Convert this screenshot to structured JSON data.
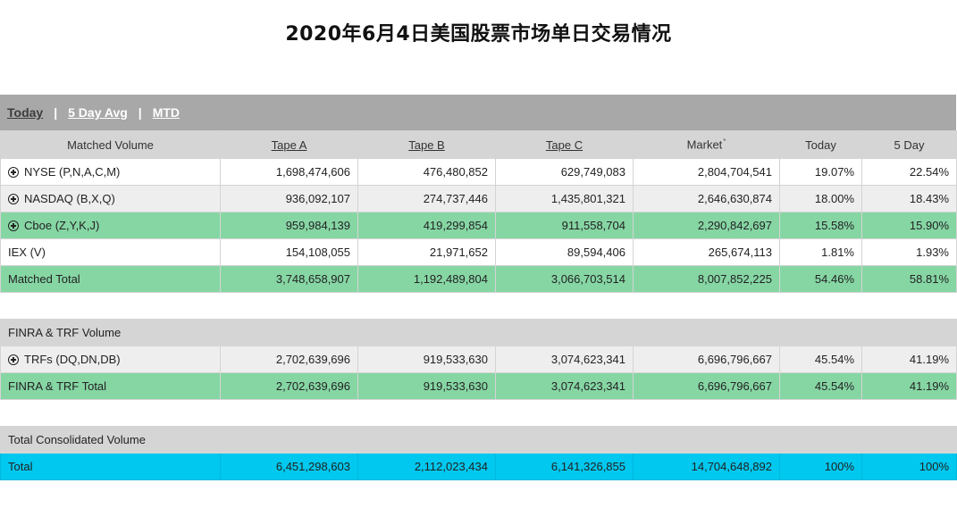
{
  "title": "2020年6月4日美国股票市场单日交易情况",
  "tabs": [
    {
      "label": "Today",
      "active": true
    },
    {
      "label": "5 Day Avg",
      "active": false
    },
    {
      "label": "MTD",
      "active": false
    }
  ],
  "tab_separator": "|",
  "headers": [
    "Matched Volume",
    "Tape A",
    "Tape B",
    "Tape C",
    "Market",
    "Today",
    "5 Day"
  ],
  "market_superscript": "*",
  "matched": [
    {
      "label": "NYSE (P,N,A,C,M)",
      "values": [
        "1,698,474,606",
        "476,480,852",
        "629,749,083",
        "2,804,704,541",
        "19.07%",
        "22.54%"
      ]
    },
    {
      "label": "NASDAQ (B,X,Q)",
      "values": [
        "936,092,107",
        "274,737,446",
        "1,435,801,321",
        "2,646,630,874",
        "18.00%",
        "18.43%"
      ]
    },
    {
      "label": "Cboe (Z,Y,K,J)",
      "values": [
        "959,984,139",
        "419,299,854",
        "911,558,704",
        "2,290,842,697",
        "15.58%",
        "15.90%"
      ]
    },
    {
      "label": "IEX (V)",
      "values": [
        "154,108,055",
        "21,971,652",
        "89,594,406",
        "265,674,113",
        "1.81%",
        "1.93%"
      ]
    }
  ],
  "matched_total": {
    "label": "Matched Total",
    "values": [
      "3,748,658,907",
      "1,192,489,804",
      "3,066,703,514",
      "8,007,852,225",
      "54.46%",
      "58.81%"
    ]
  },
  "finra_section": "FINRA & TRF Volume",
  "trfs": {
    "label": "TRFs (DQ,DN,DB)",
    "values": [
      "2,702,639,696",
      "919,533,630",
      "3,074,623,341",
      "6,696,796,667",
      "45.54%",
      "41.19%"
    ]
  },
  "finra_total": {
    "label": "FINRA & TRF Total",
    "values": [
      "2,702,639,696",
      "919,533,630",
      "3,074,623,341",
      "6,696,796,667",
      "45.54%",
      "41.19%"
    ]
  },
  "consolidated_section": "Total Consolidated Volume",
  "total": {
    "label": "Total",
    "values": [
      "6,451,298,603",
      "2,112,023,434",
      "6,141,326,855",
      "14,704,648,892",
      "100%",
      "100%"
    ]
  },
  "colors": {
    "tabbar": "#a8a8a8",
    "header": "#d5d5d5",
    "green": "#86d6a4",
    "cyan": "#00c8ef",
    "gray_row": "#eeeeee"
  },
  "icons": {
    "expand": "circle-plus-icon"
  }
}
